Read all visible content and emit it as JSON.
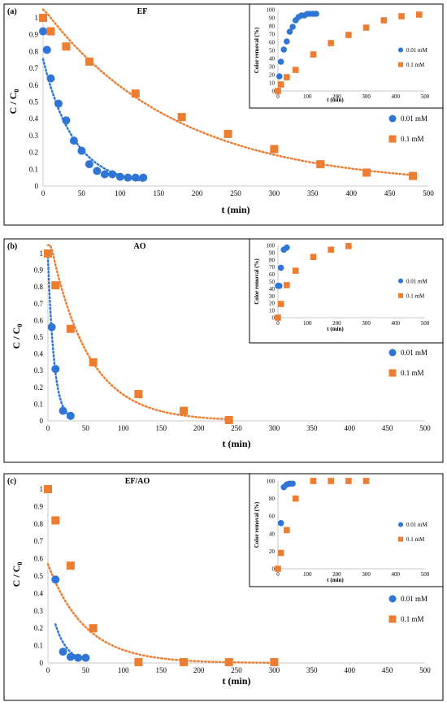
{
  "chart_data": [
    {
      "type": "scatter",
      "panel_label": "(a)",
      "title": "EF",
      "xlabel": "t (min)",
      "ylabel": "C / C",
      "ylabel_sub": "0",
      "xlim": [
        0,
        500
      ],
      "ylim": [
        0,
        1
      ],
      "xticks": [
        "0",
        "50",
        "100",
        "150",
        "200",
        "250",
        "300",
        "350",
        "400",
        "450",
        "500"
      ],
      "yticks": [
        "0",
        "0.1",
        "0.2",
        "0.3",
        "0.4",
        "0.5",
        "0.6",
        "0.7",
        "0.8",
        "0.9",
        "1"
      ],
      "trendline": "dotted, exponential fit",
      "legend_position": "right",
      "series": [
        {
          "name": "0.01 mM",
          "marker": "circle",
          "color": "#2e75d6",
          "x": [
            0,
            5,
            10,
            20,
            30,
            40,
            50,
            60,
            70,
            80,
            90,
            100,
            110,
            120,
            130
          ],
          "y": [
            0.92,
            0.81,
            0.64,
            0.49,
            0.39,
            0.27,
            0.21,
            0.13,
            0.09,
            0.07,
            0.07,
            0.055,
            0.05,
            0.05,
            0.05
          ]
        },
        {
          "name": "0.1 mM",
          "marker": "square",
          "color": "#ed7d31",
          "x": [
            0,
            10,
            30,
            60,
            120,
            180,
            240,
            300,
            360,
            420,
            480
          ],
          "y": [
            1.0,
            0.92,
            0.83,
            0.74,
            0.55,
            0.41,
            0.31,
            0.22,
            0.13,
            0.08,
            0.06
          ]
        }
      ],
      "inset": {
        "xlabel": "t (min)",
        "ylabel": "Color removal (%)",
        "xlim": [
          0,
          500
        ],
        "ylim": [
          0,
          100
        ],
        "xticks": [
          "0",
          "100",
          "200",
          "300",
          "400",
          "500"
        ],
        "yticks": [
          "0",
          "10",
          "20",
          "30",
          "40",
          "50",
          "60",
          "70",
          "80",
          "90",
          "100"
        ],
        "legend_position": "right",
        "series": [
          {
            "name": "0.01 mM",
            "marker": "circle",
            "color": "#2e75d6",
            "x": [
              0,
              5,
              10,
              20,
              30,
              40,
              50,
              60,
              70,
              80,
              90,
              100,
              110,
              120,
              130
            ],
            "y": [
              0,
              18,
              36,
              51,
              61,
              73,
              79,
              87,
              91,
              93,
              93,
              95,
              95,
              95,
              95
            ]
          },
          {
            "name": "0.1 mM",
            "marker": "square",
            "color": "#ed7d31",
            "x": [
              0,
              10,
              30,
              60,
              120,
              180,
              240,
              300,
              360,
              420,
              480
            ],
            "y": [
              0,
              8,
              17,
              26,
              45,
              59,
              69,
              78,
              87,
              92,
              94
            ]
          }
        ]
      }
    },
    {
      "type": "scatter",
      "panel_label": "(b)",
      "title": "AO",
      "xlabel": "t (min)",
      "ylabel": "C / C",
      "ylabel_sub": "0",
      "xlim": [
        0,
        500
      ],
      "ylim": [
        0,
        1
      ],
      "xticks": [
        "0",
        "50",
        "100",
        "150",
        "200",
        "250",
        "300",
        "350",
        "400",
        "450",
        "500"
      ],
      "yticks": [
        "0",
        "0.1",
        "0.2",
        "0.3",
        "0.4",
        "0.5",
        "0.6",
        "0.7",
        "0.8",
        "0.9",
        "1"
      ],
      "trendline": "dotted, exponential fit",
      "legend_position": "right",
      "series": [
        {
          "name": "0.01 mM",
          "marker": "circle",
          "color": "#2e75d6",
          "x": [
            0,
            5,
            10,
            20,
            30
          ],
          "y": [
            1.0,
            0.56,
            0.31,
            0.06,
            0.03
          ]
        },
        {
          "name": "0.1 mM",
          "marker": "square",
          "color": "#ed7d31",
          "x": [
            0,
            10,
            30,
            60,
            120,
            180,
            240
          ],
          "y": [
            1.0,
            0.81,
            0.55,
            0.35,
            0.16,
            0.06,
            0.005
          ]
        }
      ],
      "inset": {
        "xlabel": "t (min)",
        "ylabel": "Color removal (%)",
        "xlim": [
          0,
          500
        ],
        "ylim": [
          0,
          100
        ],
        "xticks": [
          "0",
          "100",
          "200",
          "300",
          "400",
          "500"
        ],
        "yticks": [
          "0",
          "10",
          "20",
          "30",
          "40",
          "50",
          "60",
          "70",
          "80",
          "90",
          "100"
        ],
        "legend_position": "right",
        "series": [
          {
            "name": "0.01 mM",
            "marker": "circle",
            "color": "#2e75d6",
            "x": [
              0,
              5,
              10,
              20,
              30
            ],
            "y": [
              44,
              44,
              69,
              94,
              97
            ]
          },
          {
            "name": "0.1 mM",
            "marker": "square",
            "color": "#ed7d31",
            "x": [
              0,
              10,
              30,
              60,
              120,
              180,
              240
            ],
            "y": [
              0,
              19,
              45,
              65,
              84,
              94,
              99
            ]
          }
        ]
      }
    },
    {
      "type": "scatter",
      "panel_label": "(c)",
      "title": "EF/AO",
      "xlabel": "t (min)",
      "ylabel": "C / C",
      "ylabel_sub": "0",
      "xlim": [
        0,
        500
      ],
      "ylim": [
        0,
        1
      ],
      "xticks": [
        "0",
        "50",
        "100",
        "150",
        "200",
        "250",
        "300",
        "350",
        "400",
        "450",
        "500"
      ],
      "yticks": [
        "0",
        "0.1",
        "0.2",
        "0.3",
        "0.4",
        "0.5",
        "0.6",
        "0.7",
        "0.8",
        "0.9",
        "1"
      ],
      "trendline": "dotted, exponential fit",
      "legend_position": "right",
      "series": [
        {
          "name": "0.01 mM",
          "marker": "circle",
          "color": "#2e75d6",
          "x": [
            10,
            20,
            30,
            40,
            50
          ],
          "y": [
            0.48,
            0.065,
            0.035,
            0.03,
            0.03
          ]
        },
        {
          "name": "0.1 mM",
          "marker": "square",
          "color": "#ed7d31",
          "x": [
            0,
            10,
            30,
            60,
            120,
            180,
            240,
            300
          ],
          "y": [
            1.0,
            0.82,
            0.56,
            0.2,
            0.005,
            0.005,
            0.005,
            0.005
          ]
        }
      ],
      "inset": {
        "xlabel": "t (min)",
        "ylabel": "Color removal (%)",
        "xlim": [
          0,
          500
        ],
        "ylim": [
          0,
          100
        ],
        "xticks": [
          "0",
          "100",
          "200",
          "300",
          "400",
          "500"
        ],
        "yticks": [
          "0",
          "20",
          "40",
          "60",
          "80",
          "100"
        ],
        "legend_position": "right",
        "series": [
          {
            "name": "0.01 mM",
            "marker": "circle",
            "color": "#2e75d6",
            "x": [
              10,
              20,
              30,
              40,
              50
            ],
            "y": [
              52,
              93,
              96,
              97,
              97
            ]
          },
          {
            "name": "0.1 mM",
            "marker": "square",
            "color": "#ed7d31",
            "x": [
              0,
              10,
              30,
              60,
              120,
              180,
              240,
              300
            ],
            "y": [
              0,
              18,
              44,
              80,
              100,
              100,
              100,
              100
            ]
          }
        ]
      }
    }
  ]
}
